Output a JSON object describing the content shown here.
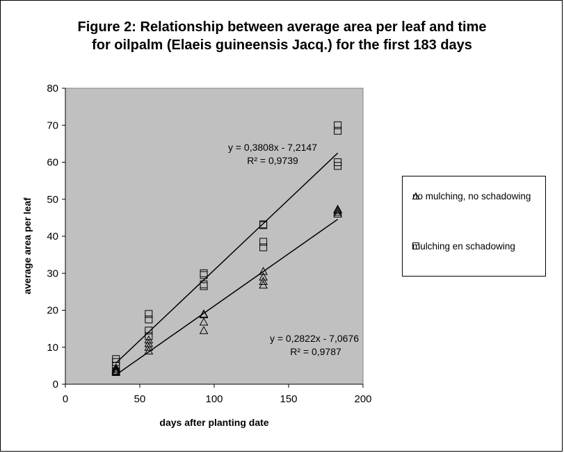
{
  "chart_data": {
    "type": "scatter",
    "title_line1": "Figure 2: Relationship between average area per leaf and time",
    "title_line2": "for oilpalm (Elaeis guineensis Jacq.) for the first 183 days",
    "xlabel": "days after planting date",
    "ylabel": "average area per leaf",
    "xlim": [
      0,
      200
    ],
    "ylim": [
      0,
      80
    ],
    "xticks": [
      0,
      50,
      100,
      150,
      200
    ],
    "yticks": [
      0,
      10,
      20,
      30,
      40,
      50,
      60,
      70,
      80
    ],
    "plot_background": "#c0c0c0",
    "legend_position": "right",
    "series": [
      {
        "name": "no mulching, no schadowing",
        "marker": "triangle",
        "points": [
          [
            34,
            3.2
          ],
          [
            34,
            3.6
          ],
          [
            34,
            4.0
          ],
          [
            34,
            4.4
          ],
          [
            56,
            9.0
          ],
          [
            56,
            10.0
          ],
          [
            56,
            11.0
          ],
          [
            56,
            12.0
          ],
          [
            93,
            14.5
          ],
          [
            93,
            16.8
          ],
          [
            93,
            18.8
          ],
          [
            93,
            19.0
          ],
          [
            133,
            26.8
          ],
          [
            133,
            27.8
          ],
          [
            133,
            29.0
          ],
          [
            133,
            30.5
          ],
          [
            183,
            46.0
          ],
          [
            183,
            46.5
          ],
          [
            183,
            47.0
          ],
          [
            183,
            47.3
          ]
        ],
        "trendline": {
          "slope": 0.2822,
          "intercept": -7.0676,
          "x_range": [
            34,
            183
          ]
        },
        "equation": "y = 0,2822x  - 7,0676",
        "r2": "R² = 0,9787"
      },
      {
        "name": "mulching en schadowing",
        "marker": "square",
        "points": [
          [
            34,
            3.5
          ],
          [
            34,
            5.0
          ],
          [
            34,
            6.0
          ],
          [
            34,
            6.8
          ],
          [
            56,
            13.0
          ],
          [
            56,
            14.5
          ],
          [
            56,
            17.5
          ],
          [
            56,
            19.0
          ],
          [
            93,
            26.5
          ],
          [
            93,
            27.0
          ],
          [
            93,
            29.5
          ],
          [
            93,
            30.0
          ],
          [
            133,
            37.0
          ],
          [
            133,
            38.5
          ],
          [
            133,
            43.0
          ],
          [
            133,
            43.2
          ],
          [
            183,
            59.0
          ],
          [
            183,
            60.0
          ],
          [
            183,
            68.5
          ],
          [
            183,
            70.0
          ]
        ],
        "trendline": {
          "slope": 0.3808,
          "intercept": -7.2147,
          "x_range": [
            34,
            183
          ]
        },
        "equation": "y = 0,3808x  - 7,2147",
        "r2": "R² = 0,9739"
      }
    ]
  },
  "legend": {
    "item1": "no mulching, no schadowing",
    "item2": "mulching en schadowing"
  }
}
